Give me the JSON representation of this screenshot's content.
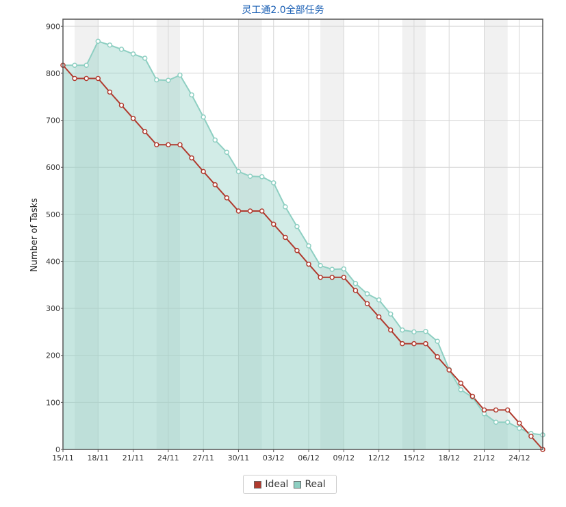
{
  "chart_data": {
    "type": "area",
    "title": "灵工通2.0全部任务",
    "ylabel": "Number of Tasks",
    "xlabel": "",
    "ylim": [
      0,
      915
    ],
    "yticks": [
      0,
      100,
      200,
      300,
      400,
      500,
      600,
      700,
      800,
      900
    ],
    "x_tick_labels": [
      "15/11",
      "18/11",
      "21/11",
      "24/11",
      "27/11",
      "30/11",
      "03/12",
      "06/12",
      "09/12",
      "12/12",
      "15/12",
      "18/12",
      "21/12",
      "24/12"
    ],
    "x_start": "2023-11-15",
    "x_end": "2023-12-26",
    "weekend_bands": [
      [
        "16/11",
        "18/11"
      ],
      [
        "23/11",
        "25/11"
      ],
      [
        "30/11",
        "02/12"
      ],
      [
        "07/12",
        "09/12"
      ],
      [
        "14/12",
        "16/12"
      ],
      [
        "21/12",
        "23/12"
      ]
    ],
    "grid": true,
    "legend_position": "bottom-center",
    "series": [
      {
        "name": "Ideal",
        "color": "#b03a2e",
        "values": [
          817,
          789,
          789,
          789,
          760,
          732,
          704,
          676,
          648,
          648,
          648,
          620,
          591,
          563,
          535,
          507,
          507,
          507,
          479,
          451,
          423,
          394,
          366,
          366,
          366,
          338,
          310,
          282,
          254,
          225,
          225,
          225,
          197,
          169,
          141,
          113,
          84,
          84,
          84,
          56,
          28,
          0
        ]
      },
      {
        "name": "Real",
        "color": "#8ecfc2",
        "values": [
          817,
          817,
          817,
          868,
          860,
          851,
          841,
          832,
          786,
          785,
          796,
          754,
          707,
          658,
          632,
          591,
          581,
          580,
          567,
          516,
          474,
          433,
          391,
          383,
          384,
          353,
          331,
          318,
          288,
          254,
          250,
          251,
          230,
          170,
          127,
          111,
          76,
          58,
          58,
          45,
          34,
          31
        ]
      }
    ]
  },
  "legend": {
    "ideal_label": "Ideal",
    "real_label": "Real"
  }
}
